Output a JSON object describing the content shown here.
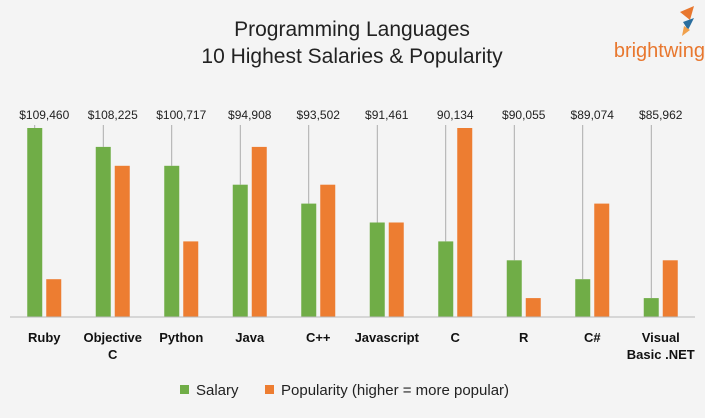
{
  "chart_data": {
    "type": "bar",
    "title_lines": [
      "Programming Languages",
      "10 Highest Salaries & Popularity"
    ],
    "categories": [
      [
        "Ruby"
      ],
      [
        "Objective",
        "C"
      ],
      [
        "Python"
      ],
      [
        "Java"
      ],
      [
        "C++"
      ],
      [
        "Javascript"
      ],
      [
        "C"
      ],
      [
        "R"
      ],
      [
        "C#"
      ],
      [
        "Visual",
        "Basic .NET"
      ]
    ],
    "value_labels": [
      "$109,460",
      "$108,225",
      "$100,717",
      "$94,908",
      "$93,502",
      "$91,461",
      "90,134",
      "$90,055",
      "$89,074",
      "$85,962"
    ],
    "series": [
      {
        "name": "Salary",
        "color": "#70ad47",
        "values": [
          10,
          9,
          8,
          7,
          6,
          5,
          4,
          3,
          2,
          1
        ]
      },
      {
        "name": "Popularity  (higher = more popular)",
        "color": "#ed7d31",
        "values": [
          2,
          8,
          4,
          9,
          7,
          5,
          10,
          1,
          6,
          3
        ]
      }
    ],
    "ylim": [
      0,
      10
    ],
    "legend_position": "bottom",
    "grid": false
  },
  "brand": {
    "logo_text": "brightwing",
    "logo_color": "#e8772e",
    "accent_color": "#2a6e9e"
  }
}
